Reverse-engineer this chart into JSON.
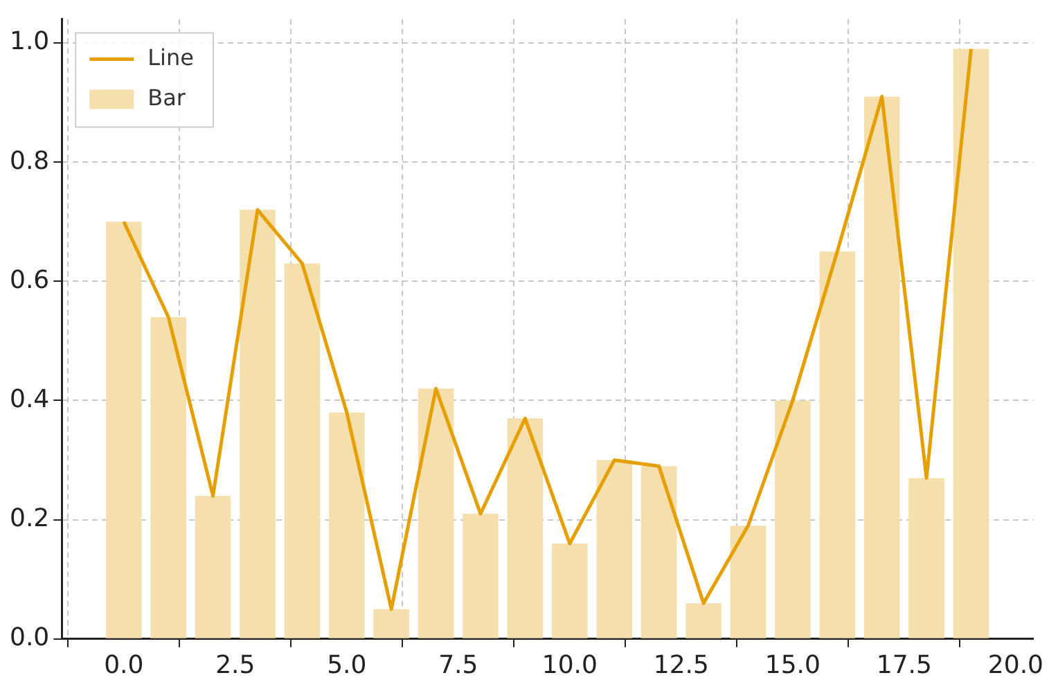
{
  "chart_data": {
    "type": "bar",
    "x": [
      0,
      1,
      2,
      3,
      4,
      5,
      6,
      7,
      8,
      9,
      10,
      11,
      12,
      13,
      14,
      15,
      16,
      17,
      18,
      19
    ],
    "series": [
      {
        "name": "Line",
        "type": "line",
        "color": "#e69f00",
        "values": [
          0.7,
          0.54,
          0.24,
          0.72,
          0.63,
          0.38,
          0.05,
          0.42,
          0.21,
          0.37,
          0.16,
          0.3,
          0.29,
          0.06,
          0.19,
          0.4,
          0.65,
          0.91,
          0.27,
          0.99
        ]
      },
      {
        "name": "Bar",
        "color": "#f5dfad",
        "values": [
          0.7,
          0.54,
          0.24,
          0.72,
          0.63,
          0.38,
          0.05,
          0.42,
          0.21,
          0.37,
          0.16,
          0.3,
          0.29,
          0.06,
          0.19,
          0.4,
          0.65,
          0.91,
          0.27,
          0.99
        ]
      }
    ],
    "xlim": [
      -1.39,
      20.39
    ],
    "xticks": [
      {
        "value": 0,
        "label": "0.0"
      },
      {
        "value": 2.5,
        "label": "2.5"
      },
      {
        "value": 5,
        "label": "5.0"
      },
      {
        "value": 7.5,
        "label": "7.5"
      },
      {
        "value": 10,
        "label": "10.0"
      },
      {
        "value": 12.5,
        "label": "12.5"
      },
      {
        "value": 15,
        "label": "15.0"
      },
      {
        "value": 17.5,
        "label": "17.5"
      },
      {
        "value": 20,
        "label": "20.0"
      }
    ],
    "ylim": [
      0,
      1.04
    ],
    "yticks": [
      {
        "value": 0,
        "label": "0.0"
      },
      {
        "value": 0.2,
        "label": "0.2"
      },
      {
        "value": 0.4,
        "label": "0.4"
      },
      {
        "value": 0.6,
        "label": "0.6"
      },
      {
        "value": 0.8,
        "label": "0.8"
      },
      {
        "value": 1,
        "label": "1.0"
      }
    ],
    "grid": true,
    "legend": "top left"
  }
}
